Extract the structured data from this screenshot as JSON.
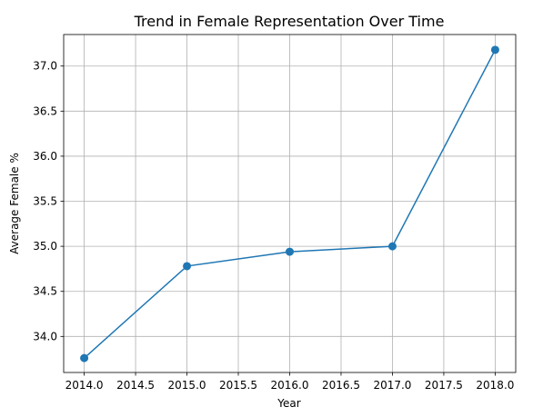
{
  "chart_data": {
    "type": "line",
    "title": "Trend in Female Representation Over Time",
    "xlabel": "Year",
    "ylabel": "Average Female %",
    "xlim": [
      2013.8,
      2018.2
    ],
    "ylim": [
      33.6,
      37.35
    ],
    "x_ticks": [
      "2014.0",
      "2014.5",
      "2015.0",
      "2015.5",
      "2016.0",
      "2016.5",
      "2017.0",
      "2017.5",
      "2018.0"
    ],
    "y_ticks": [
      "34.0",
      "34.5",
      "35.0",
      "35.5",
      "36.0",
      "36.5",
      "37.0"
    ],
    "grid": true,
    "series": [
      {
        "x": [
          2014,
          2015,
          2016,
          2017,
          2018
        ],
        "y": [
          33.76,
          34.78,
          34.94,
          35.0,
          37.18
        ],
        "color": "#1f77b4",
        "marker": "circle"
      }
    ]
  }
}
